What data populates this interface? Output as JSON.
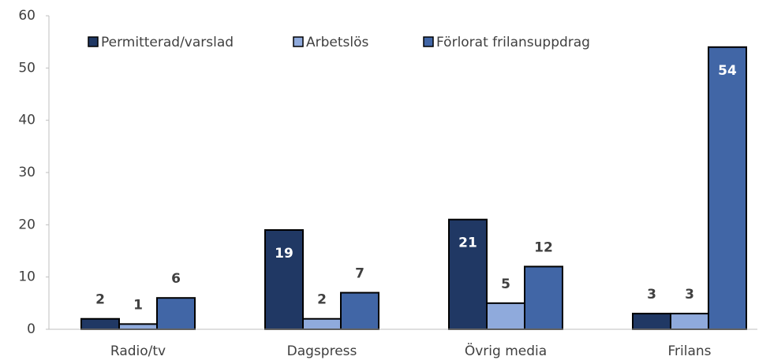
{
  "chart_data": {
    "type": "bar",
    "categories": [
      "Radio/tv",
      "Dagspress",
      "Övrig media",
      "Frilans"
    ],
    "series": [
      {
        "name": "Permitterad/varslad",
        "color": "#203864",
        "values": [
          2,
          19,
          21,
          3
        ]
      },
      {
        "name": "Arbetslös",
        "color": "#8faadc",
        "values": [
          1,
          2,
          5,
          3
        ]
      },
      {
        "name": "Förlorat frilansuppdrag",
        "color": "#4166a6",
        "values": [
          6,
          7,
          12,
          54
        ]
      }
    ],
    "ylim": [
      0,
      60
    ],
    "yticks": [
      0,
      10,
      20,
      30,
      40,
      50,
      60
    ],
    "grid": false,
    "legend": "top"
  }
}
